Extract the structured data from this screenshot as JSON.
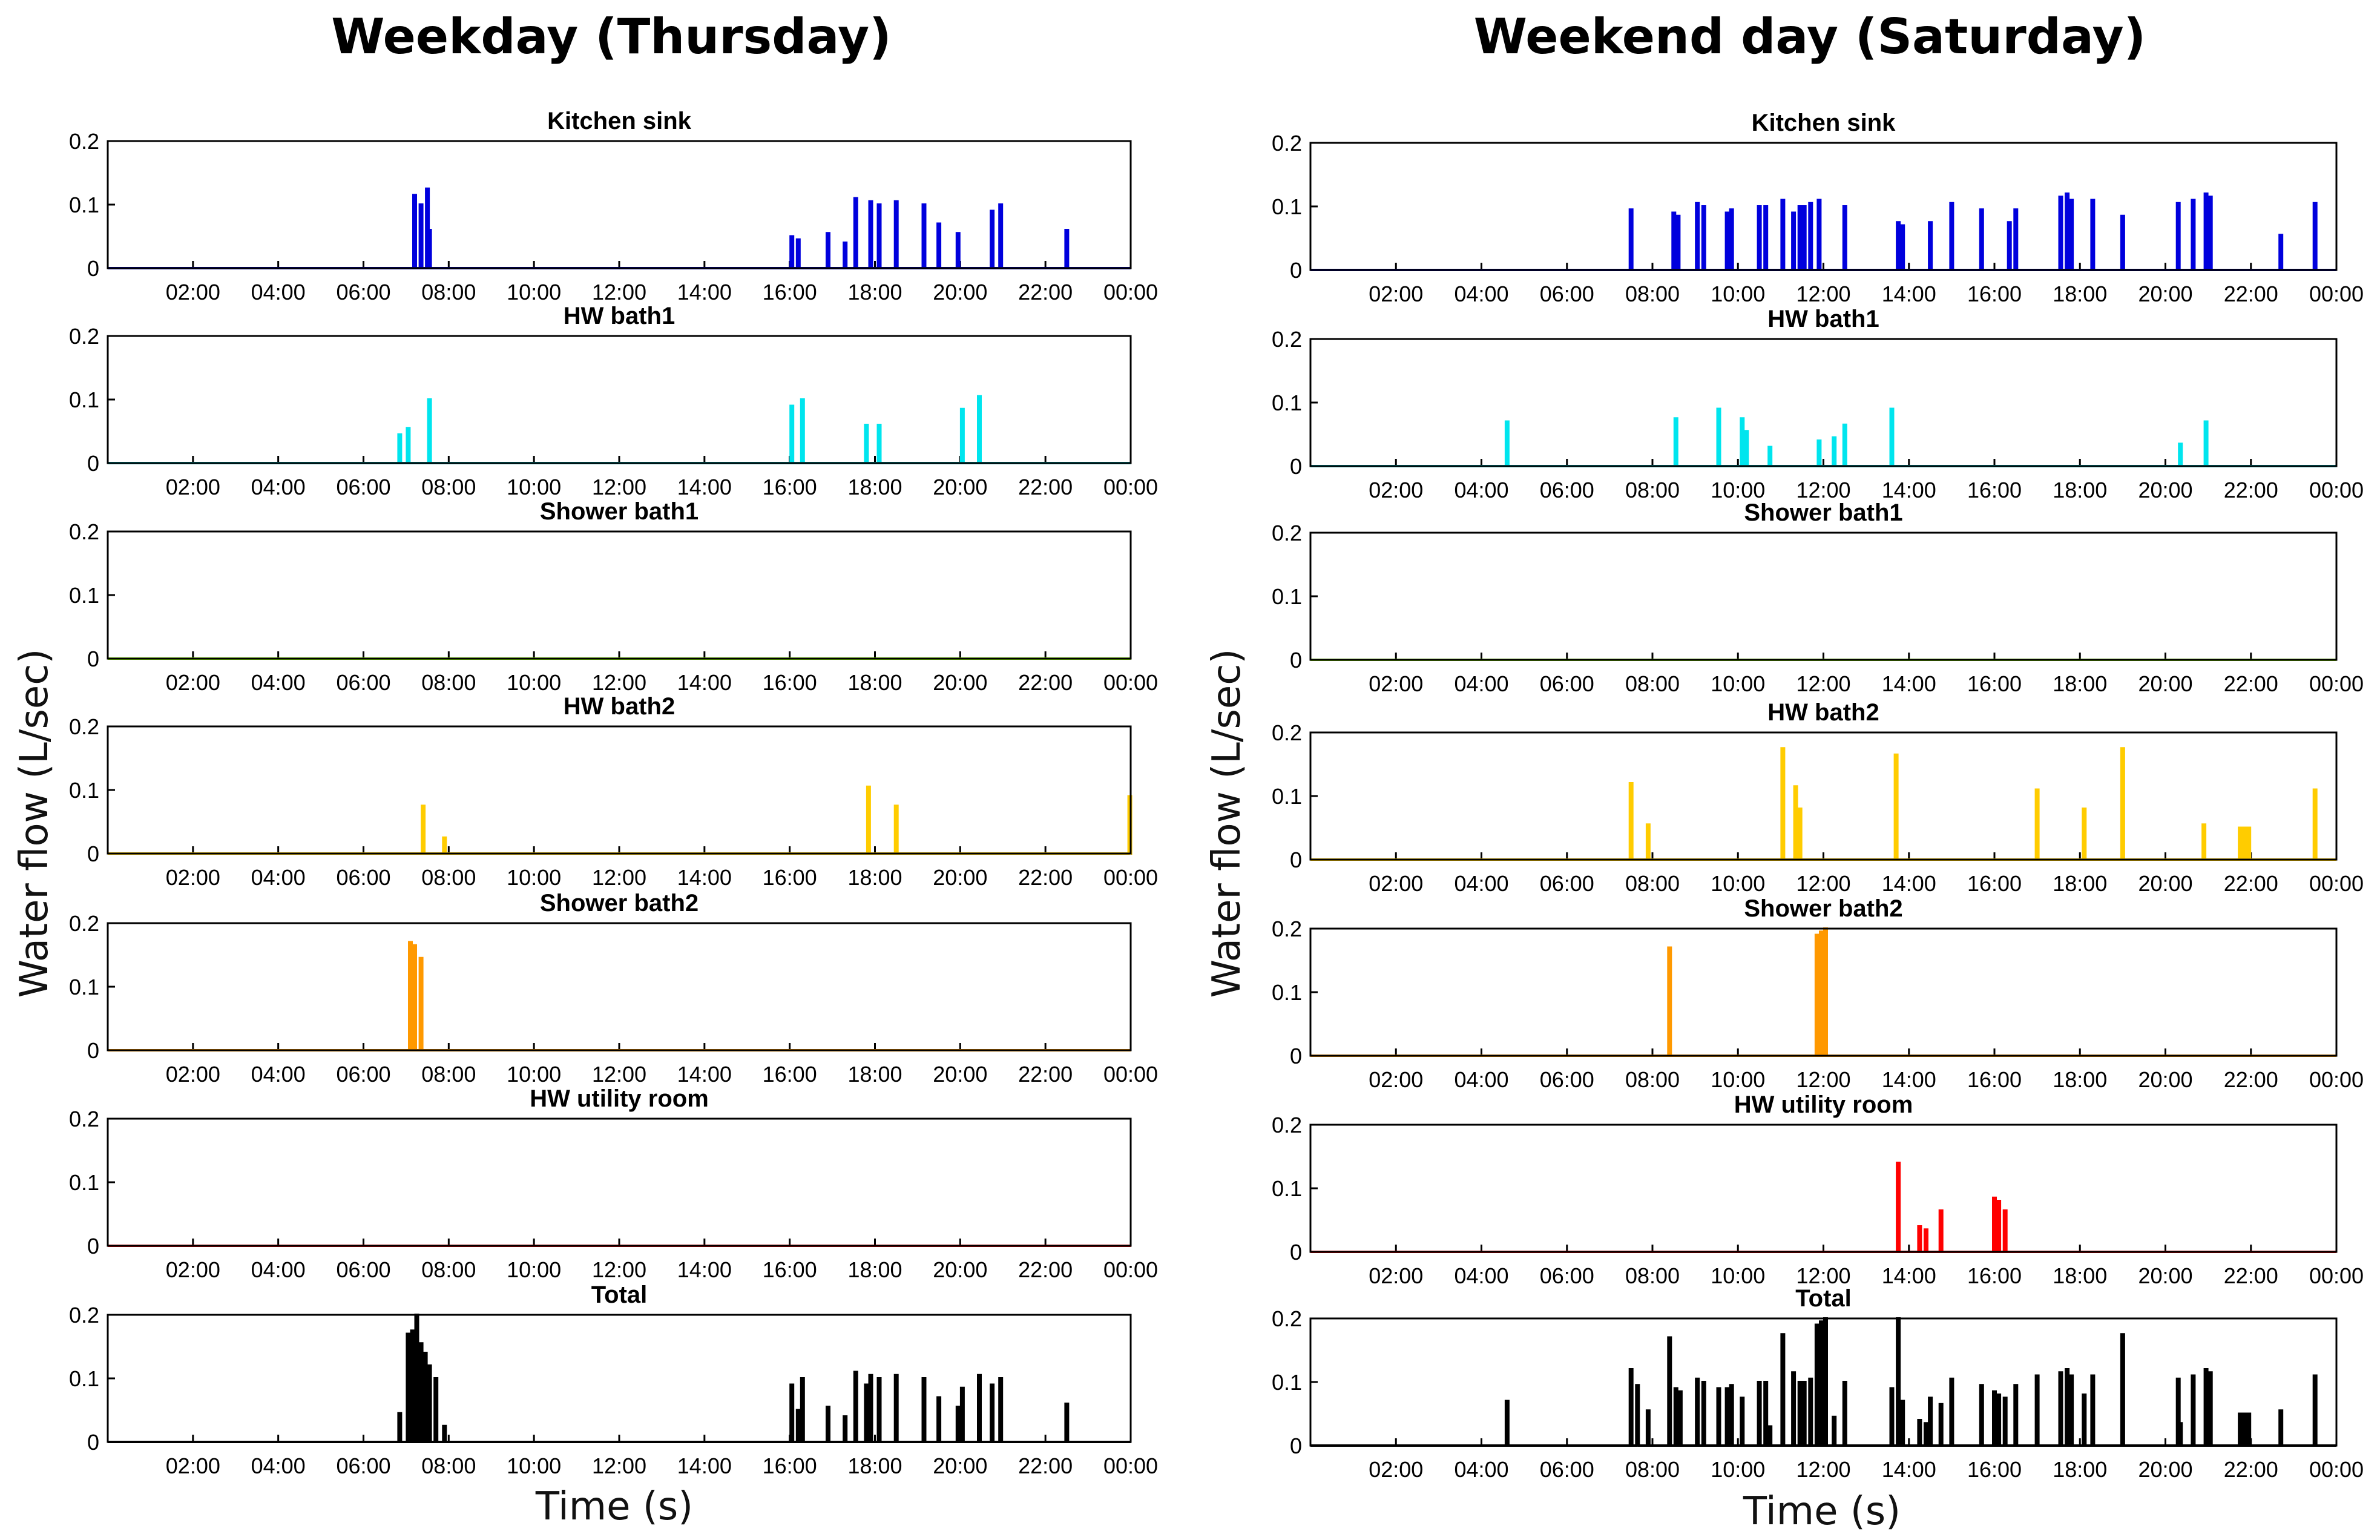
{
  "figure": {
    "left_title": "Weekday (Thursday)",
    "right_title": "Weekend day (Saturday)",
    "ylabel": "Water flow (L/sec)",
    "xlabel": "Time (s)"
  },
  "chart_data": {
    "type": "line",
    "x_unit": "hour of day",
    "xlim": [
      0,
      24
    ],
    "ylim": [
      0,
      0.2
    ],
    "x_ticks": [
      "02:00",
      "04:00",
      "06:00",
      "08:00",
      "10:00",
      "12:00",
      "14:00",
      "16:00",
      "18:00",
      "20:00",
      "22:00",
      "00:00"
    ],
    "y_ticks": [
      "0",
      "0.1",
      "0.2"
    ],
    "columns": [
      {
        "name": "Weekday (Thursday)",
        "panels": [
          {
            "title": "Kitchen sink",
            "color": "#0000dd",
            "events": [
              [
                7.2,
                0.115
              ],
              [
                7.35,
                0.1
              ],
              [
                7.5,
                0.125
              ],
              [
                7.55,
                0.06
              ],
              [
                16.05,
                0.05
              ],
              [
                16.2,
                0.045
              ],
              [
                16.9,
                0.055
              ],
              [
                17.3,
                0.04
              ],
              [
                17.55,
                0.11
              ],
              [
                17.9,
                0.105
              ],
              [
                18.1,
                0.1
              ],
              [
                18.5,
                0.105
              ],
              [
                19.15,
                0.1
              ],
              [
                19.5,
                0.07
              ],
              [
                19.95,
                0.055
              ],
              [
                20.75,
                0.09
              ],
              [
                20.95,
                0.1
              ],
              [
                22.5,
                0.06
              ]
            ]
          },
          {
            "title": "HW bath1",
            "color": "#00e5ee",
            "events": [
              [
                6.85,
                0.045
              ],
              [
                7.05,
                0.055
              ],
              [
                7.55,
                0.1
              ],
              [
                16.05,
                0.09
              ],
              [
                16.3,
                0.1
              ],
              [
                17.8,
                0.06
              ],
              [
                18.1,
                0.06
              ],
              [
                20.05,
                0.085
              ],
              [
                20.45,
                0.105
              ]
            ]
          },
          {
            "title": "Shower bath1",
            "color": "#88ee00",
            "events": []
          },
          {
            "title": "HW bath2",
            "color": "#ffcc00",
            "events": [
              [
                7.4,
                0.075
              ],
              [
                7.9,
                0.025
              ],
              [
                17.85,
                0.105
              ],
              [
                18.5,
                0.075
              ],
              [
                23.98,
                0.09
              ]
            ]
          },
          {
            "title": "Shower bath2",
            "color": "#ff9900",
            "events": [
              [
                7.1,
                0.17
              ],
              [
                7.2,
                0.165
              ],
              [
                7.35,
                0.145
              ]
            ]
          },
          {
            "title": "HW utility room",
            "color": "#ff0000",
            "events": []
          },
          {
            "title": "Total",
            "color": "#000000",
            "events": [
              [
                6.85,
                0.045
              ],
              [
                7.05,
                0.17
              ],
              [
                7.15,
                0.175
              ],
              [
                7.25,
                0.2
              ],
              [
                7.35,
                0.155
              ],
              [
                7.45,
                0.14
              ],
              [
                7.55,
                0.12
              ],
              [
                7.7,
                0.1
              ],
              [
                7.9,
                0.025
              ],
              [
                16.05,
                0.09
              ],
              [
                16.2,
                0.05
              ],
              [
                16.3,
                0.1
              ],
              [
                16.9,
                0.055
              ],
              [
                17.3,
                0.04
              ],
              [
                17.55,
                0.11
              ],
              [
                17.8,
                0.09
              ],
              [
                17.9,
                0.105
              ],
              [
                18.1,
                0.1
              ],
              [
                18.5,
                0.105
              ],
              [
                19.15,
                0.1
              ],
              [
                19.5,
                0.07
              ],
              [
                19.95,
                0.055
              ],
              [
                20.05,
                0.085
              ],
              [
                20.45,
                0.105
              ],
              [
                20.75,
                0.09
              ],
              [
                20.95,
                0.1
              ],
              [
                22.5,
                0.06
              ]
            ]
          }
        ]
      },
      {
        "name": "Weekend day (Saturday)",
        "panels": [
          {
            "title": "Kitchen sink",
            "color": "#0000dd",
            "events": [
              [
                7.5,
                0.095
              ],
              [
                8.5,
                0.09
              ],
              [
                8.6,
                0.085
              ],
              [
                9.05,
                0.105
              ],
              [
                9.2,
                0.1
              ],
              [
                9.75,
                0.09
              ],
              [
                9.85,
                0.095
              ],
              [
                10.5,
                0.1
              ],
              [
                10.65,
                0.1
              ],
              [
                11.05,
                0.11
              ],
              [
                11.3,
                0.09
              ],
              [
                11.45,
                0.1
              ],
              [
                11.55,
                0.1
              ],
              [
                11.7,
                0.105
              ],
              [
                11.9,
                0.11
              ],
              [
                12.5,
                0.1
              ],
              [
                13.75,
                0.075
              ],
              [
                13.85,
                0.07
              ],
              [
                14.5,
                0.075
              ],
              [
                15.0,
                0.105
              ],
              [
                15.7,
                0.095
              ],
              [
                16.35,
                0.075
              ],
              [
                16.5,
                0.095
              ],
              [
                17.55,
                0.115
              ],
              [
                17.7,
                0.12
              ],
              [
                17.8,
                0.11
              ],
              [
                18.3,
                0.11
              ],
              [
                19.0,
                0.085
              ],
              [
                20.3,
                0.105
              ],
              [
                20.65,
                0.11
              ],
              [
                20.95,
                0.12
              ],
              [
                21.05,
                0.115
              ],
              [
                22.7,
                0.055
              ],
              [
                23.5,
                0.105
              ]
            ]
          },
          {
            "title": "HW bath1",
            "color": "#00e5ee",
            "events": [
              [
                4.6,
                0.07
              ],
              [
                8.55,
                0.075
              ],
              [
                9.55,
                0.09
              ],
              [
                10.1,
                0.075
              ],
              [
                10.2,
                0.055
              ],
              [
                10.75,
                0.03
              ],
              [
                11.9,
                0.04
              ],
              [
                12.25,
                0.045
              ],
              [
                12.5,
                0.065
              ],
              [
                13.6,
                0.09
              ],
              [
                20.35,
                0.035
              ],
              [
                20.95,
                0.07
              ]
            ]
          },
          {
            "title": "Shower bath1",
            "color": "#88ee00",
            "events": []
          },
          {
            "title": "HW bath2",
            "color": "#ffcc00",
            "events": [
              [
                7.5,
                0.12
              ],
              [
                7.9,
                0.055
              ],
              [
                11.05,
                0.175
              ],
              [
                11.35,
                0.115
              ],
              [
                11.45,
                0.08
              ],
              [
                13.7,
                0.165
              ],
              [
                17.0,
                0.11
              ],
              [
                18.1,
                0.08
              ],
              [
                19.0,
                0.175
              ],
              [
                20.9,
                0.055
              ],
              [
                21.75,
                0.05
              ],
              [
                21.85,
                0.05
              ],
              [
                21.95,
                0.05
              ],
              [
                23.5,
                0.11
              ]
            ]
          },
          {
            "title": "Shower bath2",
            "color": "#ff9900",
            "events": [
              [
                8.4,
                0.17
              ],
              [
                11.85,
                0.19
              ],
              [
                11.95,
                0.195
              ],
              [
                12.05,
                0.2
              ]
            ]
          },
          {
            "title": "HW utility room",
            "color": "#ff0000",
            "events": [
              [
                13.75,
                0.14
              ],
              [
                14.25,
                0.04
              ],
              [
                14.4,
                0.035
              ],
              [
                14.75,
                0.065
              ],
              [
                16.0,
                0.085
              ],
              [
                16.1,
                0.08
              ],
              [
                16.25,
                0.065
              ]
            ]
          },
          {
            "title": "Total",
            "color": "#000000",
            "events": [
              [
                4.6,
                0.07
              ],
              [
                7.5,
                0.12
              ],
              [
                7.65,
                0.095
              ],
              [
                7.9,
                0.055
              ],
              [
                8.4,
                0.17
              ],
              [
                8.55,
                0.09
              ],
              [
                8.65,
                0.085
              ],
              [
                9.05,
                0.105
              ],
              [
                9.2,
                0.1
              ],
              [
                9.55,
                0.09
              ],
              [
                9.75,
                0.09
              ],
              [
                9.85,
                0.095
              ],
              [
                10.1,
                0.075
              ],
              [
                10.5,
                0.1
              ],
              [
                10.65,
                0.1
              ],
              [
                10.75,
                0.03
              ],
              [
                11.05,
                0.175
              ],
              [
                11.3,
                0.115
              ],
              [
                11.45,
                0.1
              ],
              [
                11.55,
                0.1
              ],
              [
                11.7,
                0.105
              ],
              [
                11.85,
                0.19
              ],
              [
                11.95,
                0.195
              ],
              [
                12.05,
                0.2
              ],
              [
                12.25,
                0.045
              ],
              [
                12.5,
                0.1
              ],
              [
                13.6,
                0.09
              ],
              [
                13.75,
                0.2
              ],
              [
                13.85,
                0.07
              ],
              [
                14.25,
                0.04
              ],
              [
                14.4,
                0.035
              ],
              [
                14.5,
                0.075
              ],
              [
                14.75,
                0.065
              ],
              [
                15.0,
                0.105
              ],
              [
                15.7,
                0.095
              ],
              [
                16.0,
                0.085
              ],
              [
                16.1,
                0.08
              ],
              [
                16.25,
                0.075
              ],
              [
                16.5,
                0.095
              ],
              [
                17.0,
                0.11
              ],
              [
                17.55,
                0.115
              ],
              [
                17.7,
                0.12
              ],
              [
                17.8,
                0.11
              ],
              [
                18.1,
                0.08
              ],
              [
                18.3,
                0.11
              ],
              [
                19.0,
                0.175
              ],
              [
                20.3,
                0.105
              ],
              [
                20.35,
                0.035
              ],
              [
                20.65,
                0.11
              ],
              [
                20.95,
                0.12
              ],
              [
                21.05,
                0.115
              ],
              [
                21.75,
                0.05
              ],
              [
                21.85,
                0.05
              ],
              [
                21.95,
                0.05
              ],
              [
                22.7,
                0.055
              ],
              [
                23.5,
                0.11
              ]
            ]
          }
        ]
      }
    ]
  }
}
